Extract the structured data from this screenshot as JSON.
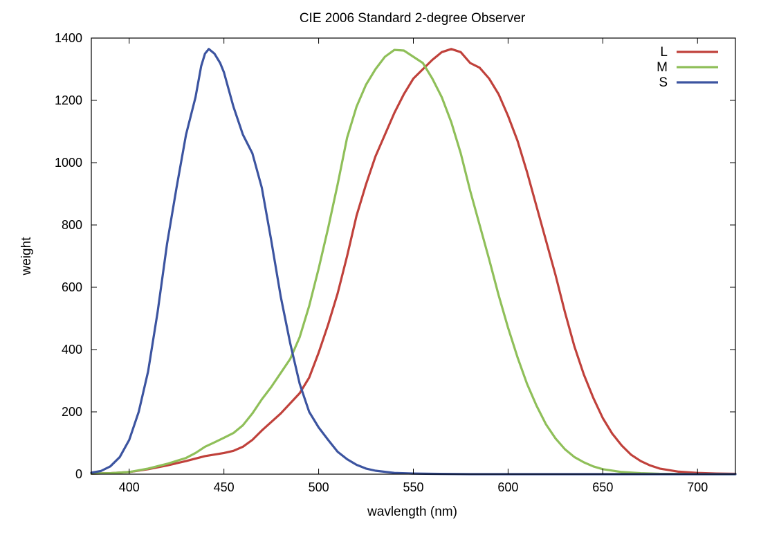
{
  "chart_data": {
    "type": "line",
    "title": "CIE 2006 Standard 2-degree Observer",
    "xlabel": "wavlength (nm)",
    "ylabel": "weight",
    "xlim": [
      380,
      720
    ],
    "ylim": [
      0,
      1400
    ],
    "xticks": [
      400,
      450,
      500,
      550,
      600,
      650,
      700
    ],
    "yticks": [
      0,
      200,
      400,
      600,
      800,
      1000,
      1200,
      1400
    ],
    "grid": false,
    "legend_position": "top-right",
    "series": [
      {
        "name": "L",
        "color": "#c0413b",
        "points": [
          [
            380,
            2
          ],
          [
            390,
            3
          ],
          [
            400,
            7
          ],
          [
            410,
            16
          ],
          [
            420,
            28
          ],
          [
            430,
            42
          ],
          [
            440,
            58
          ],
          [
            450,
            68
          ],
          [
            455,
            75
          ],
          [
            460,
            88
          ],
          [
            465,
            110
          ],
          [
            470,
            140
          ],
          [
            480,
            195
          ],
          [
            490,
            260
          ],
          [
            495,
            310
          ],
          [
            500,
            390
          ],
          [
            505,
            480
          ],
          [
            510,
            580
          ],
          [
            515,
            700
          ],
          [
            520,
            830
          ],
          [
            525,
            930
          ],
          [
            530,
            1020
          ],
          [
            535,
            1090
          ],
          [
            540,
            1160
          ],
          [
            545,
            1220
          ],
          [
            550,
            1270
          ],
          [
            555,
            1300
          ],
          [
            560,
            1330
          ],
          [
            565,
            1355
          ],
          [
            570,
            1365
          ],
          [
            575,
            1355
          ],
          [
            580,
            1320
          ],
          [
            585,
            1305
          ],
          [
            590,
            1270
          ],
          [
            595,
            1220
          ],
          [
            600,
            1150
          ],
          [
            605,
            1070
          ],
          [
            610,
            970
          ],
          [
            615,
            860
          ],
          [
            620,
            750
          ],
          [
            625,
            640
          ],
          [
            630,
            520
          ],
          [
            635,
            410
          ],
          [
            640,
            320
          ],
          [
            645,
            245
          ],
          [
            650,
            180
          ],
          [
            655,
            130
          ],
          [
            660,
            92
          ],
          [
            665,
            62
          ],
          [
            670,
            42
          ],
          [
            675,
            28
          ],
          [
            680,
            18
          ],
          [
            690,
            8
          ],
          [
            700,
            4
          ],
          [
            710,
            2
          ],
          [
            720,
            1
          ]
        ]
      },
      {
        "name": "M",
        "color": "#8fbf59",
        "points": [
          [
            380,
            2
          ],
          [
            390,
            3
          ],
          [
            400,
            7
          ],
          [
            410,
            18
          ],
          [
            420,
            33
          ],
          [
            430,
            52
          ],
          [
            435,
            68
          ],
          [
            440,
            88
          ],
          [
            445,
            102
          ],
          [
            450,
            117
          ],
          [
            455,
            132
          ],
          [
            460,
            157
          ],
          [
            465,
            195
          ],
          [
            470,
            240
          ],
          [
            475,
            280
          ],
          [
            480,
            325
          ],
          [
            485,
            370
          ],
          [
            490,
            440
          ],
          [
            495,
            540
          ],
          [
            500,
            660
          ],
          [
            505,
            790
          ],
          [
            510,
            930
          ],
          [
            515,
            1080
          ],
          [
            520,
            1180
          ],
          [
            525,
            1250
          ],
          [
            530,
            1300
          ],
          [
            535,
            1340
          ],
          [
            540,
            1362
          ],
          [
            545,
            1360
          ],
          [
            550,
            1340
          ],
          [
            555,
            1320
          ],
          [
            560,
            1270
          ],
          [
            565,
            1210
          ],
          [
            570,
            1130
          ],
          [
            575,
            1030
          ],
          [
            580,
            910
          ],
          [
            585,
            800
          ],
          [
            590,
            690
          ],
          [
            595,
            575
          ],
          [
            600,
            470
          ],
          [
            605,
            375
          ],
          [
            610,
            290
          ],
          [
            615,
            220
          ],
          [
            620,
            160
          ],
          [
            625,
            115
          ],
          [
            630,
            80
          ],
          [
            635,
            55
          ],
          [
            640,
            38
          ],
          [
            645,
            25
          ],
          [
            650,
            16
          ],
          [
            660,
            7
          ],
          [
            670,
            3
          ],
          [
            680,
            1
          ],
          [
            700,
            0
          ],
          [
            720,
            0
          ]
        ]
      },
      {
        "name": "S",
        "color": "#3c54a0",
        "points": [
          [
            380,
            5
          ],
          [
            385,
            10
          ],
          [
            390,
            25
          ],
          [
            395,
            55
          ],
          [
            400,
            110
          ],
          [
            405,
            200
          ],
          [
            410,
            330
          ],
          [
            415,
            520
          ],
          [
            420,
            740
          ],
          [
            425,
            920
          ],
          [
            430,
            1090
          ],
          [
            435,
            1210
          ],
          [
            438,
            1310
          ],
          [
            440,
            1350
          ],
          [
            442,
            1365
          ],
          [
            445,
            1350
          ],
          [
            448,
            1320
          ],
          [
            450,
            1290
          ],
          [
            455,
            1180
          ],
          [
            460,
            1090
          ],
          [
            465,
            1030
          ],
          [
            470,
            920
          ],
          [
            475,
            750
          ],
          [
            480,
            570
          ],
          [
            485,
            420
          ],
          [
            490,
            290
          ],
          [
            495,
            200
          ],
          [
            500,
            150
          ],
          [
            505,
            110
          ],
          [
            510,
            72
          ],
          [
            515,
            48
          ],
          [
            520,
            30
          ],
          [
            525,
            18
          ],
          [
            530,
            11
          ],
          [
            540,
            4
          ],
          [
            550,
            2
          ],
          [
            560,
            1
          ],
          [
            580,
            0
          ],
          [
            720,
            0
          ]
        ]
      }
    ]
  }
}
